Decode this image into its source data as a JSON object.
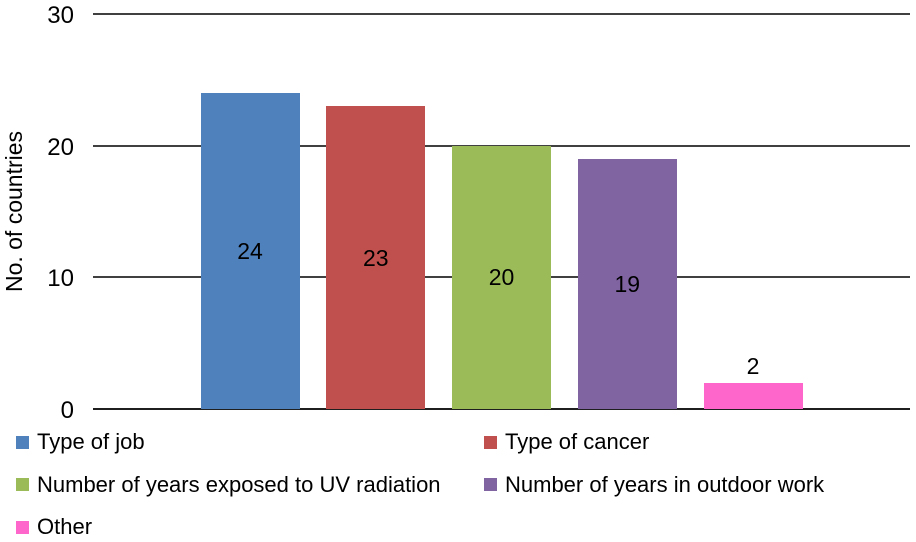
{
  "chart_data": {
    "type": "bar",
    "title": "",
    "ylabel": "No. of countries",
    "xlabel": "",
    "ylim": [
      0,
      30
    ],
    "yticks": [
      0,
      10,
      20,
      30
    ],
    "grid": "horizontal",
    "legend_position": "bottom-two-columns",
    "series": [
      {
        "name": "Type of job",
        "value": 24,
        "color": "#4f81bd"
      },
      {
        "name": "Type of cancer",
        "value": 23,
        "color": "#c0504d"
      },
      {
        "name": "Number of years exposed to UV radiation",
        "value": 20,
        "color": "#9bbb59"
      },
      {
        "name": "Number of years in outdoor work",
        "value": 19,
        "color": "#8064a2"
      },
      {
        "name": "Other",
        "value": 2,
        "color": "#ff66cc"
      }
    ]
  }
}
